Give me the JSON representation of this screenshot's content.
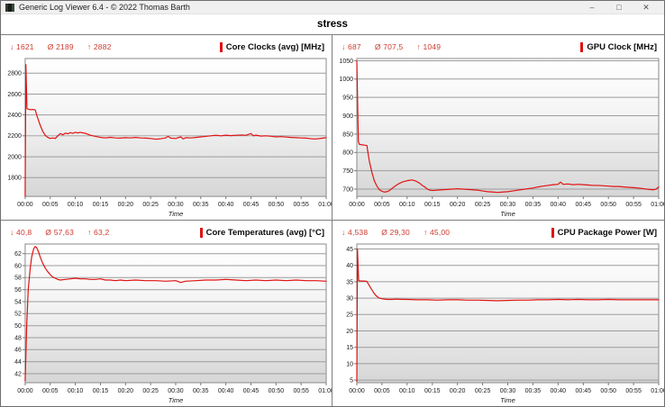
{
  "window": {
    "title": "Generic Log Viewer 6.4 - © 2022 Thomas Barth",
    "controls": {
      "minimize": "–",
      "maximize": "□",
      "close": "✕"
    }
  },
  "header": {
    "title": "stress"
  },
  "colors": {
    "accent_red": "#e01212",
    "stats_red": "#cd3a2e",
    "grid_line": "#9c9c9c",
    "plot_border": "#8a8a8a"
  },
  "stat_symbols": {
    "min": "↓",
    "avg": "Ø",
    "max": "↑"
  },
  "time_axis": {
    "label": "Time",
    "ticks": [
      0,
      5,
      10,
      15,
      20,
      25,
      30,
      35,
      40,
      45,
      50,
      55,
      60
    ],
    "labels": [
      "00:00",
      "00:05",
      "00:10",
      "00:15",
      "00:20",
      "00:25",
      "00:30",
      "00:35",
      "00:40",
      "00:45",
      "00:50",
      "00:55",
      "01:00"
    ]
  },
  "chart_data": [
    {
      "type": "line",
      "title": "Core Clocks (avg) [MHz]",
      "stats": {
        "min": "1621",
        "avg": "2189",
        "max": "2882"
      },
      "xlabel": "Time",
      "xlim": [
        0,
        60
      ],
      "ylim": [
        1620,
        2940
      ],
      "yticks": [
        1800,
        2000,
        2200,
        2400,
        2600,
        2800
      ],
      "points": [
        [
          0,
          1621
        ],
        [
          0.15,
          2882
        ],
        [
          0.35,
          2460
        ],
        [
          1,
          2450
        ],
        [
          1.5,
          2452
        ],
        [
          2,
          2448
        ],
        [
          2.3,
          2400
        ],
        [
          3,
          2300
        ],
        [
          3.5,
          2245
        ],
        [
          4,
          2205
        ],
        [
          4.5,
          2185
        ],
        [
          5,
          2175
        ],
        [
          5.5,
          2180
        ],
        [
          6,
          2175
        ],
        [
          6.5,
          2200
        ],
        [
          7,
          2222
        ],
        [
          7.5,
          2210
        ],
        [
          8,
          2226
        ],
        [
          8.5,
          2220
        ],
        [
          9,
          2230
        ],
        [
          9.5,
          2224
        ],
        [
          10,
          2234
        ],
        [
          10.5,
          2228
        ],
        [
          11,
          2234
        ],
        [
          11.5,
          2228
        ],
        [
          12,
          2224
        ],
        [
          13,
          2205
        ],
        [
          14,
          2195
        ],
        [
          15,
          2185
        ],
        [
          16,
          2180
        ],
        [
          17,
          2186
        ],
        [
          18,
          2180
        ],
        [
          19,
          2178
        ],
        [
          20,
          2182
        ],
        [
          21,
          2180
        ],
        [
          22,
          2185
        ],
        [
          23,
          2180
        ],
        [
          24,
          2178
        ],
        [
          25,
          2175
        ],
        [
          26,
          2168
        ],
        [
          27,
          2172
        ],
        [
          28,
          2180
        ],
        [
          28.5,
          2196
        ],
        [
          29,
          2178
        ],
        [
          30,
          2175
        ],
        [
          31,
          2190
        ],
        [
          31.5,
          2170
        ],
        [
          32,
          2182
        ],
        [
          33,
          2180
        ],
        [
          34,
          2185
        ],
        [
          35,
          2190
        ],
        [
          36,
          2195
        ],
        [
          37,
          2200
        ],
        [
          38,
          2205
        ],
        [
          39,
          2200
        ],
        [
          40,
          2206
        ],
        [
          41,
          2202
        ],
        [
          42,
          2205
        ],
        [
          43,
          2208
        ],
        [
          44,
          2205
        ],
        [
          45,
          2222
        ],
        [
          45.5,
          2200
        ],
        [
          46,
          2206
        ],
        [
          47,
          2198
        ],
        [
          48,
          2200
        ],
        [
          49,
          2196
        ],
        [
          50,
          2190
        ],
        [
          51,
          2193
        ],
        [
          52,
          2188
        ],
        [
          53,
          2185
        ],
        [
          54,
          2182
        ],
        [
          55,
          2180
        ],
        [
          56,
          2178
        ],
        [
          57,
          2172
        ],
        [
          58,
          2170
        ],
        [
          59,
          2176
        ],
        [
          60,
          2182
        ]
      ]
    },
    {
      "type": "line",
      "title": "GPU Clock [MHz]",
      "stats": {
        "min": "687",
        "avg": "707,5",
        "max": "1049"
      },
      "xlabel": "Time",
      "xlim": [
        0,
        60
      ],
      "ylim": [
        680,
        1056
      ],
      "yticks": [
        700,
        750,
        800,
        850,
        900,
        950,
        1000,
        1050
      ],
      "points": [
        [
          0,
          1049
        ],
        [
          0.3,
          830
        ],
        [
          0.5,
          822
        ],
        [
          1,
          821
        ],
        [
          1.5,
          820
        ],
        [
          2,
          819
        ],
        [
          2.2,
          800
        ],
        [
          2.5,
          775
        ],
        [
          3,
          745
        ],
        [
          3.5,
          722
        ],
        [
          4,
          708
        ],
        [
          4.5,
          698
        ],
        [
          5,
          694
        ],
        [
          5.5,
          692
        ],
        [
          6,
          693
        ],
        [
          6.5,
          696
        ],
        [
          7,
          702
        ],
        [
          7.5,
          707
        ],
        [
          8,
          712
        ],
        [
          8.5,
          716
        ],
        [
          9,
          719
        ],
        [
          9.5,
          721
        ],
        [
          10,
          723
        ],
        [
          10.5,
          724
        ],
        [
          11,
          725
        ],
        [
          11.5,
          723
        ],
        [
          12,
          720
        ],
        [
          12.5,
          716
        ],
        [
          13,
          710
        ],
        [
          13.5,
          706
        ],
        [
          14,
          700
        ],
        [
          14.5,
          697
        ],
        [
          15,
          696
        ],
        [
          16,
          697
        ],
        [
          17,
          698
        ],
        [
          18,
          699
        ],
        [
          19,
          700
        ],
        [
          20,
          701
        ],
        [
          21,
          700
        ],
        [
          22,
          699
        ],
        [
          23,
          698
        ],
        [
          24,
          697
        ],
        [
          25,
          695
        ],
        [
          26,
          693
        ],
        [
          27,
          692
        ],
        [
          28,
          691
        ],
        [
          29,
          692
        ],
        [
          30,
          693
        ],
        [
          31,
          695
        ],
        [
          32,
          697
        ],
        [
          33,
          699
        ],
        [
          34,
          701
        ],
        [
          35,
          703
        ],
        [
          36,
          706
        ],
        [
          37,
          708
        ],
        [
          38,
          710
        ],
        [
          39,
          712
        ],
        [
          40,
          713
        ],
        [
          40.5,
          719
        ],
        [
          41,
          713
        ],
        [
          42,
          714
        ],
        [
          43,
          712
        ],
        [
          44,
          713
        ],
        [
          45,
          712
        ],
        [
          46,
          711
        ],
        [
          47,
          710
        ],
        [
          48,
          710
        ],
        [
          49,
          709
        ],
        [
          50,
          708
        ],
        [
          51,
          707
        ],
        [
          52,
          707
        ],
        [
          53,
          706
        ],
        [
          54,
          705
        ],
        [
          55,
          704
        ],
        [
          56,
          703
        ],
        [
          57,
          701
        ],
        [
          58,
          699
        ],
        [
          59,
          698
        ],
        [
          59.5,
          700
        ],
        [
          60,
          706
        ]
      ]
    },
    {
      "type": "line",
      "title": "Core Temperatures (avg) [°C]",
      "stats": {
        "min": "40,8",
        "avg": "57,63",
        "max": "63,2"
      },
      "xlabel": "Time",
      "xlim": [
        0,
        60
      ],
      "ylim": [
        40.5,
        63.6
      ],
      "yticks": [
        42,
        44,
        46,
        48,
        50,
        52,
        54,
        56,
        58,
        60,
        62
      ],
      "points": [
        [
          0,
          40.8
        ],
        [
          0.3,
          50
        ],
        [
          0.6,
          56
        ],
        [
          1,
          59.5
        ],
        [
          1.3,
          61.5
        ],
        [
          1.7,
          62.8
        ],
        [
          2,
          63.2
        ],
        [
          2.3,
          63.0
        ],
        [
          2.7,
          62.2
        ],
        [
          3,
          61.4
        ],
        [
          3.5,
          60.4
        ],
        [
          4,
          59.6
        ],
        [
          4.5,
          59.0
        ],
        [
          5,
          58.5
        ],
        [
          5.5,
          58.1
        ],
        [
          6,
          57.9
        ],
        [
          6.5,
          57.7
        ],
        [
          7,
          57.6
        ],
        [
          8,
          57.7
        ],
        [
          9,
          57.8
        ],
        [
          10,
          57.9
        ],
        [
          11,
          57.8
        ],
        [
          12,
          57.8
        ],
        [
          13,
          57.7
        ],
        [
          14,
          57.7
        ],
        [
          15,
          57.8
        ],
        [
          16,
          57.6
        ],
        [
          17,
          57.6
        ],
        [
          18,
          57.5
        ],
        [
          19,
          57.6
        ],
        [
          20,
          57.5
        ],
        [
          22,
          57.6
        ],
        [
          24,
          57.5
        ],
        [
          26,
          57.5
        ],
        [
          28,
          57.4
        ],
        [
          30,
          57.5
        ],
        [
          31,
          57.2
        ],
        [
          32,
          57.4
        ],
        [
          34,
          57.5
        ],
        [
          36,
          57.6
        ],
        [
          38,
          57.6
        ],
        [
          40,
          57.7
        ],
        [
          42,
          57.6
        ],
        [
          44,
          57.5
        ],
        [
          46,
          57.6
        ],
        [
          48,
          57.5
        ],
        [
          50,
          57.6
        ],
        [
          52,
          57.5
        ],
        [
          54,
          57.6
        ],
        [
          56,
          57.5
        ],
        [
          58,
          57.5
        ],
        [
          60,
          57.4
        ]
      ]
    },
    {
      "type": "line",
      "title": "CPU Package Power [W]",
      "stats": {
        "min": "4,538",
        "avg": "29,30",
        "max": "45,00"
      },
      "xlabel": "Time",
      "xlim": [
        0,
        60
      ],
      "ylim": [
        4.2,
        46.5
      ],
      "yticks": [
        5,
        10,
        15,
        20,
        25,
        30,
        35,
        40,
        45
      ],
      "points": [
        [
          0,
          4.538
        ],
        [
          0.12,
          45
        ],
        [
          0.35,
          35.3
        ],
        [
          1,
          35.2
        ],
        [
          1.5,
          35.2
        ],
        [
          2,
          35.1
        ],
        [
          2.3,
          34.3
        ],
        [
          3,
          32.5
        ],
        [
          3.5,
          31.3
        ],
        [
          4,
          30.5
        ],
        [
          4.5,
          30.0
        ],
        [
          5,
          29.8
        ],
        [
          6,
          29.6
        ],
        [
          7,
          29.6
        ],
        [
          8,
          29.7
        ],
        [
          9,
          29.6
        ],
        [
          10,
          29.6
        ],
        [
          12,
          29.5
        ],
        [
          14,
          29.5
        ],
        [
          16,
          29.4
        ],
        [
          18,
          29.5
        ],
        [
          20,
          29.5
        ],
        [
          22,
          29.4
        ],
        [
          24,
          29.4
        ],
        [
          26,
          29.3
        ],
        [
          28,
          29.2
        ],
        [
          30,
          29.3
        ],
        [
          32,
          29.4
        ],
        [
          34,
          29.4
        ],
        [
          36,
          29.5
        ],
        [
          38,
          29.5
        ],
        [
          40,
          29.6
        ],
        [
          42,
          29.5
        ],
        [
          44,
          29.6
        ],
        [
          46,
          29.5
        ],
        [
          48,
          29.5
        ],
        [
          50,
          29.6
        ],
        [
          52,
          29.5
        ],
        [
          54,
          29.5
        ],
        [
          56,
          29.5
        ],
        [
          58,
          29.5
        ],
        [
          60,
          29.5
        ]
      ]
    }
  ]
}
